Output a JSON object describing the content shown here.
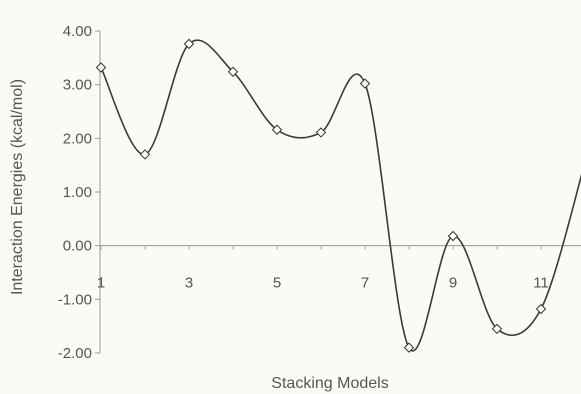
{
  "chart_data": {
    "type": "line",
    "title": "",
    "xlabel": "Stacking Models",
    "ylabel": "Interaction Energies (kcal/mol)",
    "x": [
      1,
      2,
      3,
      4,
      5,
      6,
      7,
      8,
      9,
      10,
      11,
      12
    ],
    "series": [
      {
        "values": [
          3.32,
          1.7,
          3.76,
          3.24,
          2.16,
          2.11,
          3.02,
          -1.9,
          0.18,
          -1.55,
          -1.18,
          1.55
        ]
      }
    ],
    "xticks": [
      "1",
      "3",
      "5",
      "7",
      "9",
      "11"
    ],
    "yticks": [
      "4.00",
      "3.00",
      "2.00",
      "1.00",
      "0.00",
      "-1.00",
      "-2.00"
    ],
    "ylim": [
      -2,
      4
    ],
    "grid": false,
    "marker": "diamond",
    "line_color": "#3a3a3a"
  }
}
